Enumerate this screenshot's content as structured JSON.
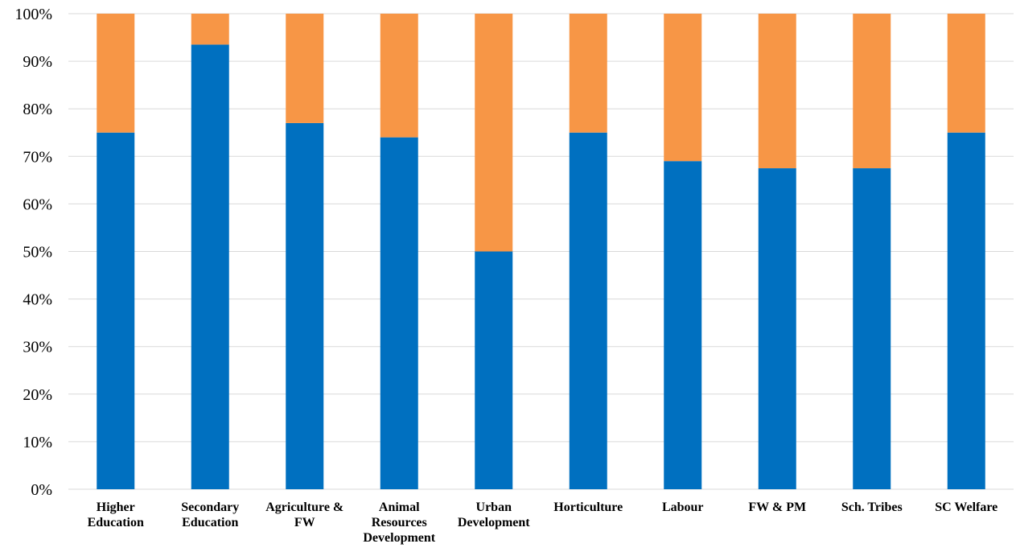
{
  "chart_data": {
    "type": "bar",
    "stacked": "percent",
    "categories": [
      [
        "Higher",
        "Education"
      ],
      [
        "Secondary",
        "Education"
      ],
      [
        "Agriculture &",
        "FW"
      ],
      [
        "Animal",
        "Resources",
        "Development"
      ],
      [
        "Urban",
        "Development"
      ],
      [
        "Horticulture"
      ],
      [
        "Labour"
      ],
      [
        "FW & PM"
      ],
      [
        "Sch. Tribes"
      ],
      [
        "SC  Welfare"
      ]
    ],
    "series": [
      {
        "values": [
          75,
          93.5,
          77,
          74,
          50,
          75,
          69,
          67.5,
          67.5,
          75
        ],
        "color": "#0070c0"
      },
      {
        "values": [
          25,
          6.5,
          23,
          26,
          50,
          25,
          31,
          32.5,
          32.5,
          25
        ],
        "color": "#f79646"
      }
    ],
    "y_ticks": [
      "0%",
      "10%",
      "20%",
      "30%",
      "40%",
      "50%",
      "60%",
      "70%",
      "80%",
      "90%",
      "100%"
    ],
    "ylim": [
      0,
      100
    ],
    "grid": true,
    "legend": "none",
    "title": "",
    "xlabel": "",
    "ylabel": ""
  }
}
